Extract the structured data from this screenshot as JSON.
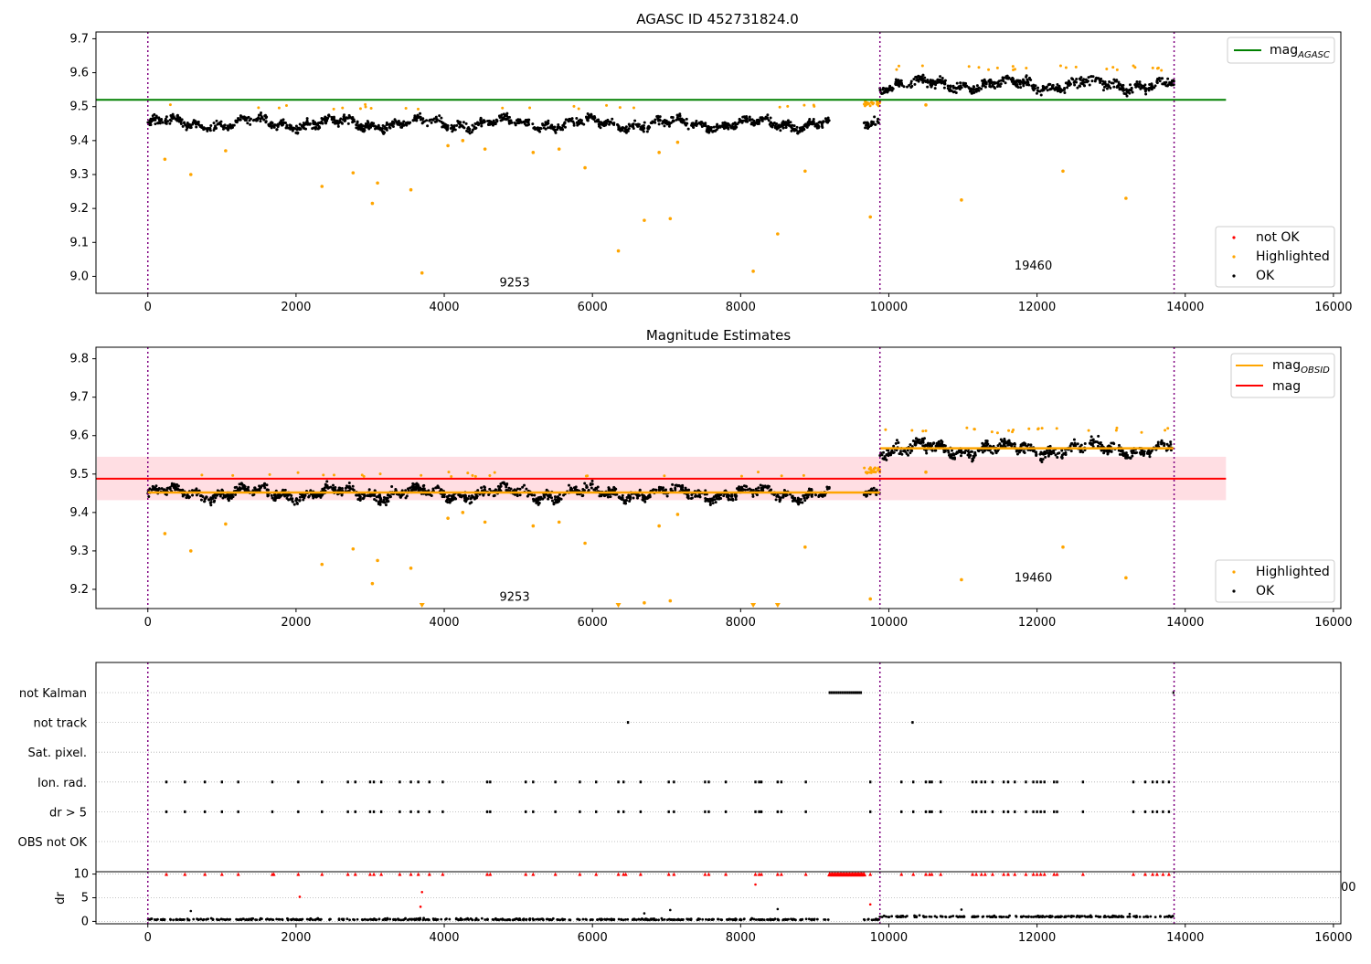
{
  "colors": {
    "ok": "#000000",
    "highlighted": "#ffa500",
    "not_ok": "#ff0000",
    "agasc_line": "#008000",
    "mag_line": "#ff0000",
    "mag_obsid": "#ffa500",
    "band": "#ffb6c1",
    "boundary": "#800080",
    "grid": "#b0b0b0"
  },
  "chart_data": [
    {
      "type": "scatter",
      "title": "AGASC ID 452731824.0",
      "xlabel": "",
      "ylabel": "",
      "xlim": [
        -700,
        16100
      ],
      "ylim": [
        8.95,
        9.72
      ],
      "xticks": [
        0,
        2000,
        4000,
        6000,
        8000,
        10000,
        12000,
        14000,
        16000
      ],
      "yticks": [
        9.0,
        9.1,
        9.2,
        9.3,
        9.4,
        9.5,
        9.6,
        9.7
      ],
      "grid": false,
      "boundaries_x": [
        0,
        9880,
        13850
      ],
      "obsid_labels": [
        {
          "text": "9253",
          "x": 4950,
          "y": 8.97
        },
        {
          "text": "19460",
          "x": 11950,
          "y": 9.02
        }
      ],
      "reference_line": {
        "name": "mag_AGASC",
        "y": 9.52,
        "x_range": [
          -700,
          14550
        ]
      },
      "series": [
        {
          "name": "OK",
          "segments": [
            {
              "x_range": [
                0,
                9200
              ],
              "base": 9.45,
              "spread": 0.022
            },
            {
              "x_range": [
                9660,
                9880
              ],
              "base": 9.46,
              "spread": 0.02
            },
            {
              "x_range": [
                9880,
                13850
              ],
              "base": 9.565,
              "spread": 0.025
            }
          ]
        },
        {
          "name": "Highlighted",
          "points": [
            [
              230,
              9.345
            ],
            [
              580,
              9.3
            ],
            [
              1050,
              9.37
            ],
            [
              2350,
              9.265
            ],
            [
              2770,
              9.305
            ],
            [
              3030,
              9.215
            ],
            [
              3100,
              9.275
            ],
            [
              3550,
              9.255
            ],
            [
              3700,
              9.01
            ],
            [
              4050,
              9.385
            ],
            [
              4250,
              9.4
            ],
            [
              4550,
              9.375
            ],
            [
              5200,
              9.365
            ],
            [
              5550,
              9.375
            ],
            [
              5900,
              9.32
            ],
            [
              6350,
              9.075
            ],
            [
              6700,
              9.165
            ],
            [
              6900,
              9.365
            ],
            [
              7050,
              9.17
            ],
            [
              7150,
              9.395
            ],
            [
              8170,
              9.015
            ],
            [
              8500,
              9.125
            ],
            [
              8870,
              9.31
            ],
            [
              9750,
              9.175
            ],
            [
              10500,
              9.505
            ],
            [
              10980,
              9.225
            ],
            [
              12350,
              9.31
            ],
            [
              13200,
              9.23
            ]
          ]
        },
        {
          "name": "not OK",
          "points": []
        }
      ]
    },
    {
      "type": "scatter",
      "title": "Magnitude Estimates",
      "xlabel": "",
      "ylabel": "",
      "xlim": [
        -700,
        16100
      ],
      "ylim": [
        9.15,
        9.83
      ],
      "xticks": [
        0,
        2000,
        4000,
        6000,
        8000,
        10000,
        12000,
        14000,
        16000
      ],
      "yticks": [
        9.2,
        9.3,
        9.4,
        9.5,
        9.6,
        9.7,
        9.8
      ],
      "grid": false,
      "boundaries_x": [
        0,
        9880,
        13850
      ],
      "obsid_labels": [
        {
          "text": "9253",
          "x": 4950,
          "y": 9.17
        },
        {
          "text": "19460",
          "x": 11950,
          "y": 9.22
        }
      ],
      "mag": 9.488,
      "mag_band": [
        9.432,
        9.545
      ],
      "mag_obsid": [
        {
          "obsid": "9253",
          "x_range": [
            0,
            9880
          ],
          "y": 9.452
        },
        {
          "obsid": "19460",
          "x_range": [
            9880,
            13850
          ],
          "y": 9.567
        }
      ],
      "series": [
        {
          "name": "mag_OBSID"
        },
        {
          "name": "mag"
        },
        {
          "name": "Highlighted"
        },
        {
          "name": "OK"
        }
      ]
    },
    {
      "type": "scatter",
      "title": "",
      "xlim": [
        -700,
        16100
      ],
      "categories": [
        "not Kalman",
        "not track",
        "Sat. pixel.",
        "Ion. rad.",
        "dr > 5",
        "OBS not OK"
      ],
      "flag_events": {
        "not Kalman": {
          "ranges": [
            [
              9200,
              9640
            ],
            [
              13840,
              13860
            ]
          ]
        },
        "not track": {
          "points": [
            6480,
            10320
          ]
        },
        "Sat. pixel.": {
          "points": []
        },
        "Ion. rad.": {
          "points": [
            250,
            500,
            770,
            1000,
            1220,
            1680,
            2030,
            2350,
            2700,
            2800,
            3000,
            3050,
            3150,
            3400,
            3550,
            3650,
            3800,
            3980,
            4580,
            4620,
            5100,
            5200,
            5500,
            5830,
            6050,
            6350,
            6420,
            6650,
            7030,
            7100,
            7520,
            7570,
            7800,
            8200,
            8250,
            8280,
            8500,
            8550,
            8880,
            9750,
            10170,
            10330,
            10500,
            10550,
            10580,
            10700,
            11130,
            11180,
            11250,
            11300,
            11400,
            11550,
            11610,
            11700,
            11850,
            11950,
            12000,
            12050,
            12100,
            12230,
            12270,
            12620,
            13300,
            13460,
            13560,
            13620,
            13700,
            13780
          ]
        },
        "dr > 5": {
          "points": [
            250,
            500,
            770,
            1000,
            1220,
            1680,
            2030,
            2350,
            2700,
            2800,
            3000,
            3050,
            3150,
            3400,
            3550,
            3650,
            3800,
            3980,
            4580,
            4620,
            5100,
            5200,
            5500,
            5830,
            6050,
            6350,
            6420,
            6650,
            7030,
            7100,
            7520,
            7570,
            7800,
            8200,
            8250,
            8280,
            8500,
            8550,
            8880,
            9750,
            10170,
            10330,
            10500,
            10550,
            10580,
            10700,
            11130,
            11180,
            11250,
            11300,
            11400,
            11550,
            11610,
            11700,
            11850,
            11950,
            12000,
            12050,
            12100,
            12230,
            12270,
            12620,
            13300,
            13460,
            13560,
            13620,
            13700,
            13780
          ]
        },
        "OBS not OK": {
          "points": []
        }
      }
    },
    {
      "type": "scatter",
      "title": "",
      "ylabel": "dr",
      "xlim": [
        -700,
        16100
      ],
      "ylim": [
        -0.5,
        10.5
      ],
      "xticks": [
        0,
        2000,
        4000,
        6000,
        8000,
        10000,
        12000,
        14000,
        16000
      ],
      "yticks": [
        0,
        5,
        10
      ],
      "series": [
        {
          "name": "OK",
          "base": 0.3,
          "spread": 0.3
        },
        {
          "name": "not OK",
          "points": [
            [
              2050,
              5.2
            ],
            [
              3700,
              6.2
            ],
            [
              3680,
              3.1
            ],
            [
              8200,
              7.8
            ],
            [
              9750,
              3.6
            ]
          ]
        }
      ],
      "clip_cap_points": [
        250,
        500,
        770,
        1000,
        1220,
        1680,
        1700,
        2030,
        2350,
        2700,
        2800,
        3000,
        3050,
        3150,
        3400,
        3550,
        3650,
        3800,
        3980,
        4580,
        4620,
        5100,
        5200,
        5500,
        5830,
        6050,
        6350,
        6420,
        6450,
        6650,
        7030,
        7100,
        7520,
        7570,
        7800,
        8200,
        8250,
        8280,
        8500,
        8550,
        8880,
        9750,
        10170,
        10330,
        10500,
        10550,
        10580,
        10700,
        11130,
        11180,
        11250,
        11300,
        11400,
        11550,
        11610,
        11700,
        11850,
        11950,
        12000,
        12050,
        12100,
        12230,
        12270,
        12620,
        13300,
        13460,
        13560,
        13620,
        13700,
        13780
      ],
      "extra_ok_points": [
        [
          580,
          2.2
        ],
        [
          7050,
          2.4
        ],
        [
          8500,
          2.6
        ],
        [
          10980,
          2.5
        ],
        [
          6700,
          1.7
        ],
        [
          13250,
          1.6
        ]
      ]
    }
  ],
  "legends": {
    "agasc": {
      "mag_agasc_main": "mag",
      "mag_agasc_sub": "AGASC"
    },
    "points1": {
      "not_ok": "not OK",
      "highlighted": "Highlighted",
      "ok": "OK"
    },
    "est": {
      "mag_obsid_main": "mag",
      "mag_obsid_sub": "OBSID",
      "mag": "mag"
    },
    "points2": {
      "highlighted": "Highlighted",
      "ok": "OK"
    }
  },
  "stray_text": "00"
}
